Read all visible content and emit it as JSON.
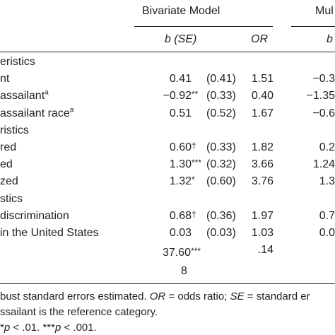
{
  "header": {
    "bivariate_title": "Bivariate Model",
    "multi_title": "Mul",
    "col_b_se": "b (SE)",
    "col_or": "OR",
    "col_b_se_multi": "b"
  },
  "rows": [
    {
      "label": "eristics",
      "b": "",
      "sig": "",
      "se": "",
      "or": "",
      "multi": ""
    },
    {
      "label": "nt",
      "b": "0.41",
      "sig": "",
      "se": "(0.41)",
      "or": "1.51",
      "multi": "−0.3"
    },
    {
      "label": "assailant",
      "label_sup": "a",
      "b": "−0.92",
      "sig": "**",
      "se": "(0.33)",
      "or": "0.40",
      "multi": "−1.35"
    },
    {
      "label": "assailant race",
      "label_sup": "a",
      "b": "0.51",
      "sig": "",
      "se": "(0.52)",
      "or": "1.67",
      "multi": "−0.6"
    },
    {
      "label": "ristics",
      "b": "",
      "sig": "",
      "se": "",
      "or": "",
      "multi": ""
    },
    {
      "label": "red",
      "b": "0.60",
      "sig": "†",
      "se": "(0.33)",
      "or": "1.82",
      "multi": "0.2"
    },
    {
      "label": "ed",
      "b": "1.30",
      "sig": "***",
      "se": "(0.32)",
      "or": "3.66",
      "multi": "1.24"
    },
    {
      "label": "zed",
      "b": "1.32",
      "sig": "*",
      "se": "(0.60)",
      "or": "3.76",
      "multi": "1.3"
    },
    {
      "label": "stics",
      "b": "",
      "sig": "",
      "se": "",
      "or": "",
      "multi": ""
    },
    {
      "label": "discrimination",
      "b": "0.68",
      "sig": "†",
      "se": "(0.36)",
      "or": "1.97",
      "multi": "0.7"
    },
    {
      "label": "in the United States",
      "b": "0.03",
      "sig": "",
      "se": "(0.03)",
      "or": "1.03",
      "multi": "0.0"
    },
    {
      "label": "",
      "b": "",
      "sig": "",
      "se": "",
      "or": ".14",
      "multi": ""
    }
  ],
  "stats": {
    "chi_value": "37.60",
    "chi_sig": "***",
    "df": "8"
  },
  "notes": {
    "line1_a": "bust standard errors estimated. ",
    "line1_or": "OR",
    "line1_b": " = odds ratio; ",
    "line1_se": "SE",
    "line1_c": " = standard er",
    "line2": "ssailant is the reference category.",
    "line3_a": "*",
    "line3_p1": "p",
    "line3_b": " < .01. ***",
    "line3_p2": "p",
    "line3_c": " < .001."
  }
}
